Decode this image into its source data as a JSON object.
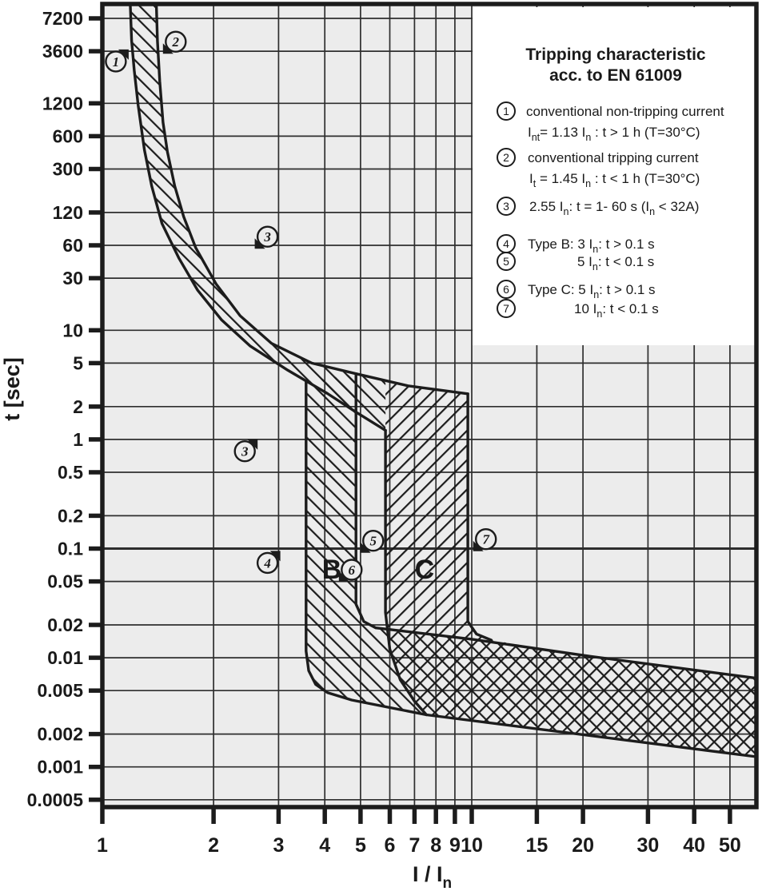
{
  "figure": {
    "y_axis_label": "t [sec]",
    "x_axis_label_main": "I / I",
    "x_axis_label_sub": "n",
    "colors": {
      "plot_background": "#ececec",
      "line": "#1c1c1c",
      "grid": "#2e2e2e",
      "panel": "#ffffff"
    }
  },
  "legend": {
    "title_line1": "Tripping characteristic",
    "title_line2": "acc. to EN 61009",
    "items": [
      {
        "num": "1",
        "lines": [
          [
            {
              "t": "conventional non-tripping current"
            }
          ],
          [
            {
              "t": "I"
            },
            {
              "s": "nt"
            },
            {
              "t": "= 1.13 I"
            },
            {
              "s": "n"
            },
            {
              "t": " : t > 1 h   (T=30°C)"
            }
          ]
        ]
      },
      {
        "num": "2",
        "lines": [
          [
            {
              "t": "conventional tripping current"
            }
          ],
          [
            {
              "t": "I"
            },
            {
              "s": "t"
            },
            {
              "t": " = 1.45 I"
            },
            {
              "s": "n"
            },
            {
              "t": " : t < 1 h   (T=30°C)"
            }
          ]
        ]
      },
      {
        "num": "3",
        "lines": [
          [
            {
              "t": "2.55 I"
            },
            {
              "s": "n"
            },
            {
              "t": ": t = 1- 60 s (I"
            },
            {
              "s": "n"
            },
            {
              "t": " < 32A)"
            }
          ]
        ]
      },
      {
        "num": "4",
        "lines": [
          [
            {
              "t": "Type B: 3 I"
            },
            {
              "s": "n"
            },
            {
              "t": ": t > 0.1 s"
            }
          ]
        ]
      },
      {
        "num": "5",
        "lines": [
          [
            {
              "t": "5 I"
            },
            {
              "s": "n"
            },
            {
              "t": ": t < 0.1 s"
            }
          ]
        ]
      },
      {
        "num": "6",
        "lines": [
          [
            {
              "t": "Type C: 5 I"
            },
            {
              "s": "n"
            },
            {
              "t": ": t > 0.1 s"
            }
          ]
        ]
      },
      {
        "num": "7",
        "lines": [
          [
            {
              "t": "10 I"
            },
            {
              "s": "n"
            },
            {
              "t": ": t < 0.1 s"
            }
          ]
        ]
      }
    ]
  },
  "chart_data": {
    "type": "area",
    "title": "Tripping characteristic acc. to EN 61009",
    "xlabel": "I / In",
    "ylabel": "t [sec]",
    "x_scale": "log",
    "y_scale": "log",
    "xlim": [
      1,
      59
    ],
    "ylim": [
      0.0005,
      9800
    ],
    "grid": true,
    "x_ticks": [
      {
        "v": 1,
        "l": "1"
      },
      {
        "v": 2,
        "l": "2"
      },
      {
        "v": 3,
        "l": "3"
      },
      {
        "v": 4,
        "l": "4"
      },
      {
        "v": 5,
        "l": "5"
      },
      {
        "v": 6,
        "l": "6"
      },
      {
        "v": 7,
        "l": "7"
      },
      {
        "v": 8,
        "l": "8"
      },
      {
        "v": 9,
        "l": "9"
      },
      {
        "v": 10,
        "l": "10"
      },
      {
        "v": 15,
        "l": "15"
      },
      {
        "v": 20,
        "l": "20"
      },
      {
        "v": 30,
        "l": "30"
      },
      {
        "v": 40,
        "l": "40"
      },
      {
        "v": 50,
        "l": "50"
      }
    ],
    "y_ticks": [
      {
        "v": 7200,
        "l": "7200"
      },
      {
        "v": 3600,
        "l": "3600"
      },
      {
        "v": 1200,
        "l": "1200"
      },
      {
        "v": 600,
        "l": "600"
      },
      {
        "v": 300,
        "l": "300"
      },
      {
        "v": 120,
        "l": "120"
      },
      {
        "v": 60,
        "l": "60"
      },
      {
        "v": 30,
        "l": "30"
      },
      {
        "v": 10,
        "l": "10"
      },
      {
        "v": 5,
        "l": "5"
      },
      {
        "v": 2,
        "l": "2"
      },
      {
        "v": 1,
        "l": "1"
      },
      {
        "v": 0.5,
        "l": "0.5"
      },
      {
        "v": 0.2,
        "l": "0.2"
      },
      {
        "v": 0.1,
        "l": "0.1",
        "emph": true
      },
      {
        "v": 0.05,
        "l": "0.05"
      },
      {
        "v": 0.02,
        "l": "0.02"
      },
      {
        "v": 0.01,
        "l": "0.01"
      },
      {
        "v": 0.005,
        "l": "0.005"
      },
      {
        "v": 0.002,
        "l": "0.002"
      },
      {
        "v": 0.001,
        "l": "0.001"
      },
      {
        "v": 0.0005,
        "l": "0.0005"
      }
    ],
    "characteristics": {
      "conventional_non_tripping": {
        "current": "1.13 In",
        "condition": "t > 1 h",
        "temp": "30°C"
      },
      "conventional_tripping": {
        "current": "1.45 In",
        "condition": "t < 1 h",
        "temp": "30°C"
      },
      "test_2_55": {
        "current": "2.55 In",
        "condition": "t = 1-60 s",
        "note": "In < 32A"
      },
      "type_B": {
        "hold": "3 In: t > 0.1 s",
        "trip": "5 In: t < 0.1 s"
      },
      "type_C": {
        "hold": "5 In: t > 0.1 s",
        "trip": "10 In: t < 0.1 s"
      }
    },
    "series": {
      "curve1_non_tripping_boundary": [
        [
          1.19,
          9800
        ],
        [
          1.2,
          4500
        ],
        [
          1.22,
          2400
        ],
        [
          1.25,
          1150
        ],
        [
          1.3,
          450
        ],
        [
          1.36,
          210
        ],
        [
          1.45,
          95
        ],
        [
          1.61,
          46
        ],
        [
          1.81,
          23.4
        ],
        [
          2.1,
          12.5
        ],
        [
          2.51,
          7.2
        ],
        [
          3.18,
          4.3
        ],
        [
          4.07,
          2.63
        ],
        [
          4.86,
          1.78
        ],
        [
          5.84,
          1.21
        ]
      ],
      "curve2_tripping_boundary": [
        [
          1.4,
          9800
        ],
        [
          1.41,
          4500
        ],
        [
          1.43,
          1900
        ],
        [
          1.46,
          800
        ],
        [
          1.5,
          430
        ],
        [
          1.57,
          210
        ],
        [
          1.66,
          110
        ],
        [
          1.79,
          57
        ],
        [
          2.03,
          26.7
        ],
        [
          2.36,
          13.6
        ],
        [
          2.87,
          7.6
        ],
        [
          3.69,
          5.0
        ],
        [
          4.86,
          4.0
        ],
        [
          6.72,
          3.1
        ],
        [
          9.76,
          2.62
        ]
      ],
      "b_left_boundary": [
        [
          3.56,
          3.4
        ],
        [
          3.56,
          0.0115
        ],
        [
          3.62,
          0.0076
        ],
        [
          3.78,
          0.0057
        ],
        [
          4.07,
          0.0048
        ],
        [
          4.73,
          0.0041
        ],
        [
          7.54,
          0.003
        ],
        [
          59,
          0.00124
        ]
      ],
      "b_right_boundary": [
        [
          4.86,
          4.0
        ],
        [
          4.86,
          0.031
        ],
        [
          5.1,
          0.0215
        ],
        [
          5.5,
          0.0188
        ],
        [
          10,
          0.0148
        ],
        [
          21,
          0.0103
        ],
        [
          59,
          0.0065
        ]
      ],
      "c_left_boundary": [
        [
          5.84,
          1.21
        ],
        [
          5.84,
          0.026
        ],
        [
          6.0,
          0.012
        ],
        [
          6.4,
          0.0063
        ],
        [
          7.0,
          0.004
        ],
        [
          7.54,
          0.003
        ]
      ],
      "c_right_boundary": [
        [
          9.76,
          2.62
        ],
        [
          9.76,
          0.0215
        ],
        [
          10.3,
          0.0165
        ],
        [
          11.3,
          0.0145
        ]
      ],
      "c_band_top_edge": [
        [
          5.84,
          3.5
        ],
        [
          6.72,
          3.1
        ],
        [
          9.76,
          2.62
        ]
      ]
    },
    "annotations": [
      {
        "label": "1",
        "v": 1.088,
        "t": 2900,
        "flag": "ne"
      },
      {
        "label": "2",
        "v": 1.58,
        "t": 4400,
        "flag": "sw"
      },
      {
        "label": "3",
        "v": 2.8,
        "t": 72,
        "flag": "sw"
      },
      {
        "label": "3",
        "v": 2.43,
        "t": 0.78,
        "flag": "ne"
      },
      {
        "label": "4",
        "v": 2.8,
        "t": 0.074,
        "flag": "ne"
      },
      {
        "label": "5",
        "v": 5.41,
        "t": 0.118,
        "flag": "sw"
      },
      {
        "label": "6",
        "v": 4.73,
        "t": 0.064,
        "flag": "sw"
      },
      {
        "label": "7",
        "v": 10.92,
        "t": 0.122,
        "flag": "sw"
      }
    ],
    "band_letters": [
      {
        "label": "B",
        "v": 4.18,
        "t": 0.065
      },
      {
        "label": "C",
        "v": 7.45,
        "t": 0.065
      }
    ]
  }
}
